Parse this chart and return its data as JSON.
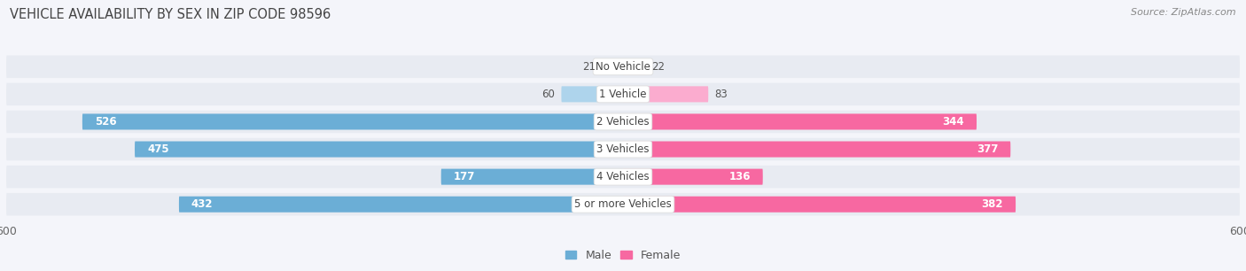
{
  "title": "VEHICLE AVAILABILITY BY SEX IN ZIP CODE 98596",
  "source": "Source: ZipAtlas.com",
  "categories": [
    "No Vehicle",
    "1 Vehicle",
    "2 Vehicles",
    "3 Vehicles",
    "4 Vehicles",
    "5 or more Vehicles"
  ],
  "male_values": [
    21,
    60,
    526,
    475,
    177,
    432
  ],
  "female_values": [
    22,
    83,
    344,
    377,
    136,
    382
  ],
  "male_color": "#6BAED6",
  "female_color": "#F768A1",
  "male_color_light": "#AED4EC",
  "female_color_light": "#FBACCF",
  "row_bg_color": "#E8EBF2",
  "fig_bg_color": "#F4F5FA",
  "xlim": 600,
  "title_fontsize": 10.5,
  "source_fontsize": 8,
  "label_fontsize": 8.5,
  "value_fontsize": 8.5,
  "axis_label_fontsize": 9,
  "legend_fontsize": 9
}
